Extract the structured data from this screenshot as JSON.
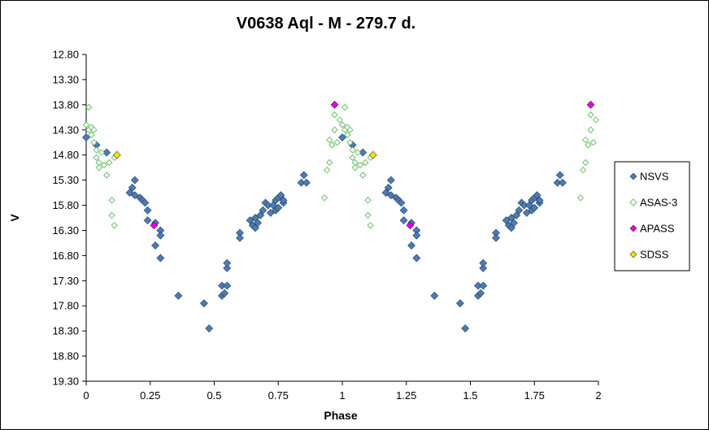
{
  "chart_data": {
    "type": "scatter",
    "title": "V0638 Aql - M - 279.7 d.",
    "xlabel": "Phase",
    "ylabel": "V",
    "xlim": [
      0,
      2
    ],
    "ylim": [
      12.8,
      19.3
    ],
    "y_inverted": true,
    "x_ticks": [
      "0",
      "0.25",
      "0.5",
      "0.75",
      "1",
      "1.25",
      "1.5",
      "1.75",
      "2"
    ],
    "y_ticks": [
      "12.80",
      "13.30",
      "13.80",
      "14.30",
      "14.80",
      "15.30",
      "15.80",
      "16.30",
      "16.80",
      "17.30",
      "17.80",
      "18.30",
      "18.80",
      "19.30"
    ],
    "grid": false,
    "legend_position": "right",
    "series": [
      {
        "name": "NSVS",
        "color": "#4f7bb0",
        "marker": "diamond-filled",
        "points": [
          [
            0.0,
            14.45
          ],
          [
            0.04,
            14.6
          ],
          [
            0.08,
            14.75
          ],
          [
            0.17,
            15.55
          ],
          [
            0.18,
            15.45
          ],
          [
            0.19,
            15.3
          ],
          [
            0.19,
            15.6
          ],
          [
            0.21,
            15.65
          ],
          [
            0.22,
            15.7
          ],
          [
            0.23,
            15.75
          ],
          [
            0.24,
            15.9
          ],
          [
            0.24,
            16.1
          ],
          [
            0.27,
            16.15
          ],
          [
            0.27,
            16.6
          ],
          [
            0.29,
            16.3
          ],
          [
            0.29,
            16.4
          ],
          [
            0.29,
            16.85
          ],
          [
            0.36,
            17.6
          ],
          [
            0.46,
            17.75
          ],
          [
            0.48,
            18.25
          ],
          [
            0.53,
            17.4
          ],
          [
            0.53,
            17.6
          ],
          [
            0.54,
            17.55
          ],
          [
            0.55,
            17.4
          ],
          [
            0.55,
            17.05
          ],
          [
            0.55,
            16.95
          ],
          [
            0.6,
            16.35
          ],
          [
            0.6,
            16.45
          ],
          [
            0.64,
            16.1
          ],
          [
            0.65,
            16.2
          ],
          [
            0.66,
            16.25
          ],
          [
            0.66,
            16.05
          ],
          [
            0.67,
            16.15
          ],
          [
            0.68,
            16.0
          ],
          [
            0.69,
            15.9
          ],
          [
            0.7,
            15.75
          ],
          [
            0.71,
            15.8
          ],
          [
            0.72,
            15.95
          ],
          [
            0.73,
            15.8
          ],
          [
            0.74,
            15.9
          ],
          [
            0.74,
            15.7
          ],
          [
            0.75,
            15.65
          ],
          [
            0.75,
            15.85
          ],
          [
            0.76,
            15.6
          ],
          [
            0.77,
            15.75
          ],
          [
            0.77,
            15.7
          ],
          [
            0.84,
            15.35
          ],
          [
            0.85,
            15.2
          ],
          [
            0.86,
            15.35
          ],
          [
            1.0,
            14.45
          ],
          [
            1.04,
            14.6
          ],
          [
            1.08,
            14.75
          ],
          [
            1.17,
            15.55
          ],
          [
            1.18,
            15.45
          ],
          [
            1.19,
            15.3
          ],
          [
            1.19,
            15.6
          ],
          [
            1.21,
            15.65
          ],
          [
            1.22,
            15.7
          ],
          [
            1.23,
            15.75
          ],
          [
            1.24,
            15.9
          ],
          [
            1.24,
            16.1
          ],
          [
            1.27,
            16.15
          ],
          [
            1.27,
            16.6
          ],
          [
            1.29,
            16.3
          ],
          [
            1.29,
            16.4
          ],
          [
            1.29,
            16.85
          ],
          [
            1.36,
            17.6
          ],
          [
            1.46,
            17.75
          ],
          [
            1.48,
            18.25
          ],
          [
            1.53,
            17.4
          ],
          [
            1.53,
            17.6
          ],
          [
            1.54,
            17.55
          ],
          [
            1.55,
            17.4
          ],
          [
            1.55,
            17.05
          ],
          [
            1.55,
            16.95
          ],
          [
            1.6,
            16.35
          ],
          [
            1.6,
            16.45
          ],
          [
            1.64,
            16.1
          ],
          [
            1.65,
            16.2
          ],
          [
            1.66,
            16.25
          ],
          [
            1.66,
            16.05
          ],
          [
            1.67,
            16.15
          ],
          [
            1.68,
            16.0
          ],
          [
            1.69,
            15.9
          ],
          [
            1.7,
            15.75
          ],
          [
            1.71,
            15.8
          ],
          [
            1.72,
            15.95
          ],
          [
            1.73,
            15.8
          ],
          [
            1.74,
            15.9
          ],
          [
            1.74,
            15.7
          ],
          [
            1.75,
            15.65
          ],
          [
            1.75,
            15.85
          ],
          [
            1.76,
            15.6
          ],
          [
            1.77,
            15.75
          ],
          [
            1.77,
            15.7
          ],
          [
            1.84,
            15.35
          ],
          [
            1.85,
            15.2
          ],
          [
            1.86,
            15.35
          ]
        ]
      },
      {
        "name": "ASAS-3",
        "color": "#c5f2c5",
        "marker": "diamond-hollow",
        "points": [
          [
            0.0,
            14.2
          ],
          [
            0.01,
            13.85
          ],
          [
            0.01,
            14.3
          ],
          [
            0.02,
            14.25
          ],
          [
            0.02,
            14.4
          ],
          [
            0.03,
            14.3
          ],
          [
            0.03,
            14.55
          ],
          [
            0.04,
            14.7
          ],
          [
            0.04,
            14.85
          ],
          [
            0.05,
            14.95
          ],
          [
            0.05,
            15.05
          ],
          [
            0.06,
            14.75
          ],
          [
            0.07,
            15.0
          ],
          [
            0.08,
            15.2
          ],
          [
            0.09,
            14.95
          ],
          [
            0.1,
            15.7
          ],
          [
            0.1,
            16.0
          ],
          [
            0.11,
            16.2
          ],
          [
            0.11,
            14.85
          ],
          [
            0.93,
            15.65
          ],
          [
            0.94,
            15.1
          ],
          [
            0.95,
            14.95
          ],
          [
            0.95,
            14.5
          ],
          [
            0.96,
            14.6
          ],
          [
            0.97,
            14.3
          ],
          [
            0.97,
            14.0
          ],
          [
            0.98,
            14.55
          ],
          [
            0.99,
            14.1
          ],
          [
            1.0,
            14.2
          ],
          [
            1.01,
            13.85
          ],
          [
            1.01,
            14.3
          ],
          [
            1.02,
            14.25
          ],
          [
            1.02,
            14.4
          ],
          [
            1.03,
            14.3
          ],
          [
            1.03,
            14.55
          ],
          [
            1.04,
            14.7
          ],
          [
            1.04,
            14.85
          ],
          [
            1.05,
            14.95
          ],
          [
            1.05,
            15.05
          ],
          [
            1.06,
            14.75
          ],
          [
            1.07,
            15.0
          ],
          [
            1.08,
            15.2
          ],
          [
            1.09,
            14.95
          ],
          [
            1.1,
            15.7
          ],
          [
            1.1,
            16.0
          ],
          [
            1.11,
            16.2
          ],
          [
            1.11,
            14.85
          ],
          [
            1.93,
            15.65
          ],
          [
            1.94,
            15.1
          ],
          [
            1.95,
            14.95
          ],
          [
            1.95,
            14.5
          ],
          [
            1.96,
            14.6
          ],
          [
            1.97,
            14.3
          ],
          [
            1.97,
            14.0
          ],
          [
            1.98,
            14.55
          ],
          [
            1.99,
            14.1
          ]
        ]
      },
      {
        "name": "APASS",
        "color": "#e600e6",
        "marker": "diamond-filled",
        "points": [
          [
            0.265,
            16.2
          ],
          [
            0.97,
            13.8
          ],
          [
            1.265,
            16.2
          ],
          [
            1.97,
            13.8
          ]
        ]
      },
      {
        "name": "SDSS",
        "color": "#f2e600",
        "marker": "diamond-filled",
        "points": [
          [
            0.12,
            14.8
          ],
          [
            1.12,
            14.8
          ]
        ]
      }
    ]
  }
}
